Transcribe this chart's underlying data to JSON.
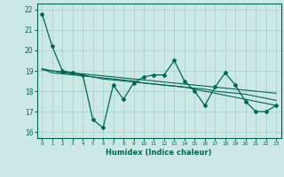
{
  "xlabel": "Humidex (Indice chaleur)",
  "xlim": [
    -0.5,
    23.5
  ],
  "ylim": [
    15.7,
    22.3
  ],
  "yticks": [
    16,
    17,
    18,
    19,
    20,
    21,
    22
  ],
  "xtick_labels": [
    "0",
    "1",
    "2",
    "3",
    "4",
    "5",
    "6",
    "7",
    "8",
    "9",
    "10",
    "11",
    "12",
    "13",
    "14",
    "15",
    "16",
    "17",
    "18",
    "19",
    "20",
    "21",
    "22",
    "23"
  ],
  "background_color": "#cce8e4",
  "grid_color": "#aad4cc",
  "line_color": "#006655",
  "series": [
    [
      21.8,
      20.2,
      19.0,
      18.9,
      18.8,
      16.6,
      16.2,
      18.3,
      17.6,
      18.4,
      18.7,
      18.8,
      18.8,
      19.5,
      18.5,
      18.0,
      17.3,
      18.2,
      18.9,
      18.3,
      17.5,
      17.0,
      17.0,
      17.3
    ],
    [
      19.1,
      18.9,
      18.85,
      18.8,
      18.75,
      18.7,
      18.65,
      18.6,
      18.55,
      18.5,
      18.4,
      18.35,
      18.3,
      18.25,
      18.2,
      18.1,
      18.0,
      17.9,
      17.8,
      17.7,
      17.6,
      17.5,
      17.4,
      17.3
    ],
    [
      19.05,
      19.0,
      18.95,
      18.9,
      18.85,
      18.8,
      18.75,
      18.7,
      18.65,
      18.6,
      18.55,
      18.5,
      18.45,
      18.4,
      18.35,
      18.3,
      18.25,
      18.2,
      18.15,
      18.1,
      18.05,
      18.0,
      17.95,
      17.9
    ],
    [
      19.1,
      19.0,
      18.9,
      18.85,
      18.8,
      18.7,
      18.6,
      18.55,
      18.5,
      18.45,
      18.4,
      18.35,
      18.3,
      18.25,
      18.2,
      18.15,
      18.1,
      18.0,
      17.95,
      17.9,
      17.85,
      17.75,
      17.65,
      17.55
    ]
  ]
}
